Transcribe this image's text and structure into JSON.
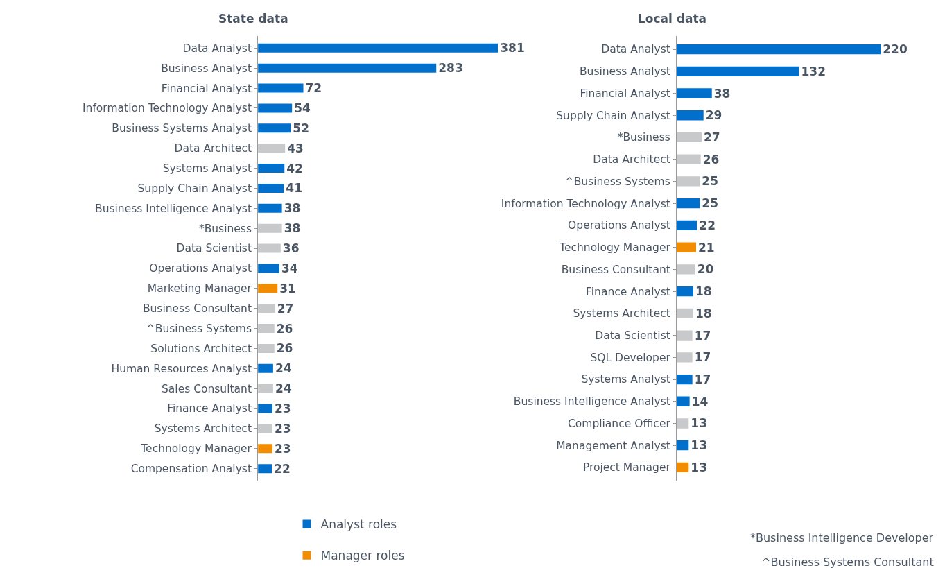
{
  "chart_data": [
    {
      "type": "bar",
      "title": "State data",
      "orientation": "horizontal",
      "data_labels": true,
      "legend": "bottom",
      "categories": [
        "Data Analyst",
        "Business Analyst",
        "Financial Analyst",
        "Information Technology Analyst",
        "Business Systems Analyst",
        "Data Architect",
        "Systems Analyst",
        "Supply Chain Analyst",
        "Business Intelligence Analyst",
        "*Business",
        "Data Scientist",
        "Operations Analyst",
        "Marketing Manager",
        "Business Consultant",
        "^Business Systems",
        "Solutions Architect",
        "Human Resources Analyst",
        "Sales Consultant",
        "Finance Analyst",
        "Systems Architect",
        "Technology Manager",
        "Compensation Analyst"
      ],
      "series": [
        {
          "name": "Analyst roles",
          "color": "#0070cc",
          "values": [
            381,
            283,
            72,
            54,
            52,
            null,
            42,
            41,
            38,
            null,
            null,
            34,
            null,
            null,
            null,
            null,
            24,
            null,
            23,
            null,
            null,
            22
          ]
        },
        {
          "name": "Manager roles",
          "color": "#f28c00",
          "values": [
            null,
            null,
            null,
            null,
            null,
            null,
            null,
            null,
            null,
            null,
            null,
            null,
            31,
            null,
            null,
            null,
            null,
            null,
            null,
            null,
            23,
            null
          ]
        },
        {
          "color": "#c8c9cb",
          "values": [
            null,
            null,
            null,
            null,
            null,
            43,
            null,
            null,
            null,
            38,
            36,
            null,
            null,
            27,
            26,
            26,
            null,
            24,
            null,
            23,
            null,
            null
          ]
        }
      ]
    },
    {
      "type": "bar",
      "title": "Local data",
      "orientation": "horizontal",
      "data_labels": true,
      "categories": [
        "Data Analyst",
        "Business Analyst",
        "Financial Analyst",
        "Supply Chain Analyst",
        "*Business",
        "Data Architect",
        "^Business Systems",
        "Information Technology Analyst",
        "Operations Analyst",
        "Technology Manager",
        "Business Consultant",
        "Finance Analyst",
        "Systems Architect",
        "Data Scientist",
        "SQL Developer",
        "Systems Analyst",
        "Business Intelligence Analyst",
        "Compliance Officer",
        "Management Analyst",
        "Project Manager"
      ],
      "series": [
        {
          "color": "#0070cc",
          "values": [
            220,
            132,
            38,
            29,
            null,
            null,
            null,
            25,
            22,
            null,
            null,
            18,
            null,
            null,
            null,
            17,
            14,
            null,
            13,
            null
          ]
        },
        {
          "color": "#f28c00",
          "values": [
            null,
            null,
            null,
            null,
            null,
            null,
            null,
            null,
            null,
            21,
            null,
            null,
            null,
            null,
            null,
            null,
            null,
            null,
            null,
            13
          ]
        },
        {
          "color": "#c8c9cb",
          "values": [
            null,
            null,
            null,
            null,
            27,
            26,
            25,
            null,
            null,
            null,
            20,
            null,
            18,
            17,
            17,
            null,
            null,
            13,
            null,
            null
          ]
        }
      ],
      "annotations": [
        "*Business Intelligence Developer",
        "^Business Systems Consultant"
      ]
    }
  ]
}
